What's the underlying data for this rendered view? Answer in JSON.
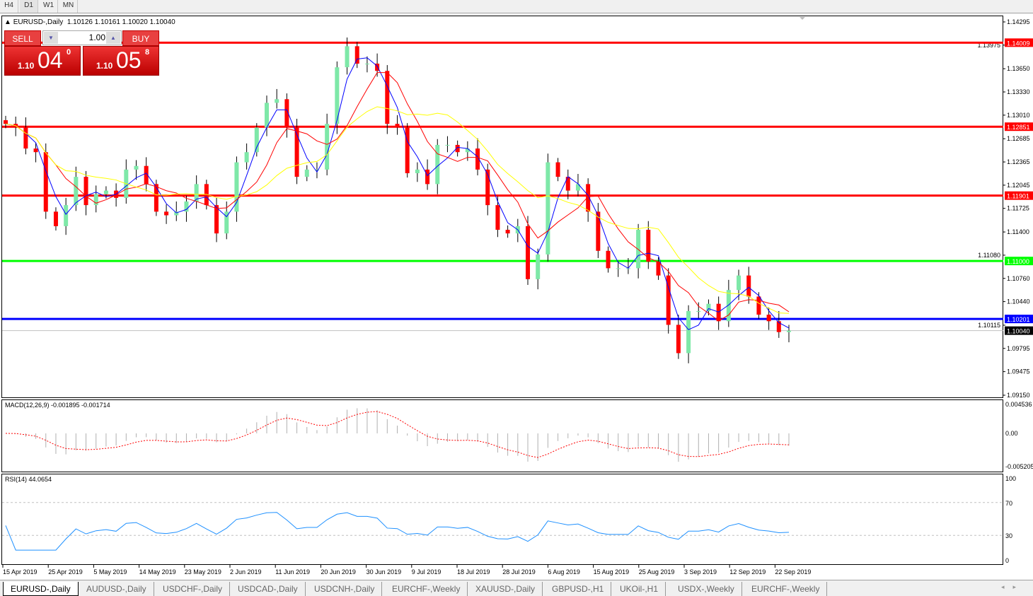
{
  "timeframes": [
    "H4",
    "D1",
    "W1",
    "MN"
  ],
  "active_timeframe": "D1",
  "chart_title": "EUR USD-,Daily",
  "header": {
    "symbol": "EURUSD-,Daily",
    "ohlc": "1.10126 1.10161 1.10020 1.10040"
  },
  "trade_panel": {
    "sell_label": "SELL",
    "buy_label": "BUY",
    "lot": "1.00",
    "sell_small": "1.10",
    "sell_big": "04",
    "sell_sup": "0",
    "buy_small": "1.10",
    "buy_big": "05",
    "buy_sup": "8"
  },
  "chart_data": {
    "type": "candlestick",
    "ylim": [
      1.0915,
      1.14295
    ],
    "price_ticks": [
      "1.14295",
      "1.13975",
      "1.13650",
      "1.13330",
      "1.13010",
      "1.12685",
      "1.12365",
      "1.12045",
      "1.11725",
      "1.11400",
      "1.11080",
      "1.10760",
      "1.10440",
      "1.10115",
      "1.09795",
      "1.09475",
      "1.09150"
    ],
    "date_labels": [
      "15 Apr 2019",
      "25 Apr 2019",
      "5 May 2019",
      "14 May 2019",
      "23 May 2019",
      "2 Jun 2019",
      "11 Jun 2019",
      "20 Jun 2019",
      "30 Jun 2019",
      "9 Jul 2019",
      "18 Jul 2019",
      "28 Jul 2019",
      "6 Aug 2019",
      "15 Aug 2019",
      "25 Aug 2019",
      "3 Sep 2019",
      "12 Sep 2019",
      "22 Sep 2019"
    ],
    "close": [
      1.1289,
      1.1284,
      1.1255,
      1.125,
      1.1168,
      1.1148,
      1.1177,
      1.1216,
      1.1177,
      1.1192,
      1.1197,
      1.1187,
      1.1226,
      1.1231,
      1.1206,
      1.1168,
      1.1163,
      1.1168,
      1.1182,
      1.1206,
      1.1177,
      1.1138,
      1.1168,
      1.1236,
      1.125,
      1.1284,
      1.1318,
      1.1323,
      1.1284,
      1.1216,
      1.1226,
      1.1226,
      1.1289,
      1.1367,
      1.1396,
      1.1372,
      1.1372,
      1.1362,
      1.1289,
      1.1284,
      1.1221,
      1.1226,
      1.1206,
      1.126,
      1.126,
      1.125,
      1.1255,
      1.1226,
      1.1177,
      1.1143,
      1.1138,
      1.1148,
      1.1075,
      1.1109,
      1.1236,
      1.1216,
      1.1197,
      1.1206,
      1.1168,
      1.1114,
      1.109,
      1.109,
      1.109,
      1.1143,
      1.1099,
      1.108,
      1.1012,
      1.0973,
      1.1031,
      1.1031,
      1.1041,
      1.1017,
      1.106,
      1.108,
      1.1051,
      1.1026,
      1.1017,
      1.1002,
      1.1004
    ],
    "levels": [
      {
        "price": "1.14009",
        "color": "#ff0000"
      },
      {
        "price": "1.12851",
        "color": "#ff0000"
      },
      {
        "price": "1.11901",
        "color": "#ff0000"
      },
      {
        "price": "1.11000",
        "color": "#00ff00"
      },
      {
        "price": "1.10201",
        "color": "#0000ff"
      }
    ],
    "bid": "1.10040",
    "colors": {
      "bull": "#7ee8a8",
      "bear": "#ff0000",
      "ma_fast": "#0000ff",
      "ma_mid": "#ff0000",
      "ma_slow": "#ffff00"
    }
  },
  "macd": {
    "label": "MACD(12,26,9) -0.001895 -0.001714",
    "ticks": [
      "0.004536",
      "0.00",
      "-0.005205"
    ],
    "range": [
      -0.005205,
      0.004536
    ]
  },
  "rsi": {
    "label": "RSI(14) 44.0654",
    "ticks": [
      "100",
      "70",
      "30",
      "0"
    ]
  },
  "tabs": [
    "EURUSD-,Daily",
    "AUDUSD-,Daily",
    "USDCHF-,Daily",
    "USDCAD-,Daily",
    "USDCNH-,Daily",
    "EURCHF-,Weekly",
    "XAUUSD-,Daily",
    "GBPUSD-,H1",
    "UKOil-,H1",
    "USDX-,Weekly",
    "EURCHF-,Weekly"
  ],
  "active_tab": "EURUSD-,Daily"
}
